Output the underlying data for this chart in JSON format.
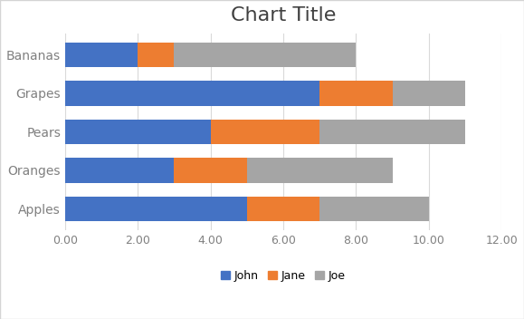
{
  "title": "Chart Title",
  "categories": [
    "Bananas",
    "Grapes",
    "Pears",
    "Oranges",
    "Apples"
  ],
  "series": {
    "John": [
      2,
      7,
      4,
      3,
      5
    ],
    "Jane": [
      1,
      2,
      3,
      2,
      2
    ],
    "Joe": [
      5,
      2,
      4,
      4,
      3
    ]
  },
  "colors": {
    "John": "#4472C4",
    "Jane": "#ED7D31",
    "Joe": "#A5A5A5"
  },
  "xlim": [
    0,
    12
  ],
  "xticks": [
    0.0,
    2.0,
    4.0,
    6.0,
    8.0,
    10.0,
    12.0
  ],
  "xtick_labels": [
    "0.00",
    "2.00",
    "4.00",
    "6.00",
    "8.00",
    "10.00",
    "12.00"
  ],
  "title_fontsize": 16,
  "background_color": "#ffffff",
  "grid_color": "#d9d9d9",
  "border_color": "#d4d4d4",
  "tick_label_color": "#808080",
  "bar_height": 0.65
}
